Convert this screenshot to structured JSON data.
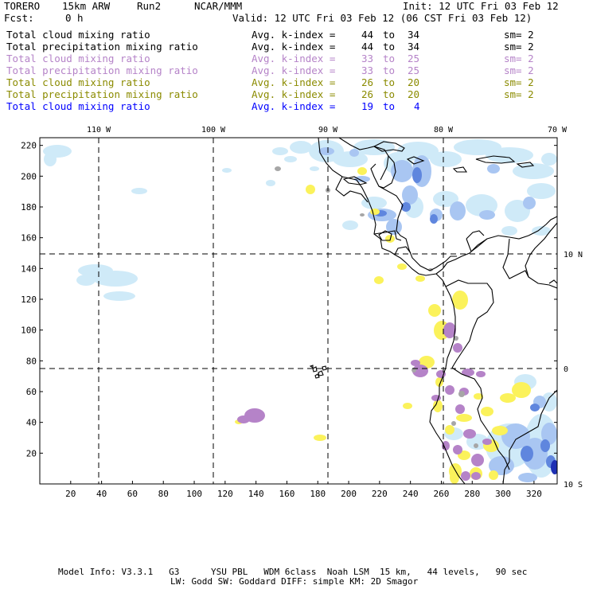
{
  "header": {
    "model": "TORERO",
    "resolution": "15km ARW",
    "run": "Run2",
    "org": "NCAR/MMM",
    "init": "Init: 12 UTC Fri 03 Feb 12",
    "fcst_label": "Fcst:",
    "fcst_value": "0 h",
    "valid": "Valid: 12 UTC Fri 03 Feb 12 (06 CST Fri 03 Feb 12)"
  },
  "legend": [
    {
      "field": "Total cloud mixing ratio",
      "avg_label": "Avg. k-index =",
      "k_from": "44",
      "to": "to",
      "k_to": "34",
      "sm": "sm= 2",
      "color": "#000000"
    },
    {
      "field": "Total precipitation mixing ratio",
      "avg_label": "Avg. k-index =",
      "k_from": "44",
      "to": "to",
      "k_to": "34",
      "sm": "sm= 2",
      "color": "#000000"
    },
    {
      "field": "Total cloud mixing ratio",
      "avg_label": "Avg. k-index =",
      "k_from": "33",
      "to": "to",
      "k_to": "25",
      "sm": "sm= 2",
      "color": "#b583c8"
    },
    {
      "field": "Total precipitation mixing ratio",
      "avg_label": "Avg. k-index =",
      "k_from": "33",
      "to": "to",
      "k_to": "25",
      "sm": "sm= 2",
      "color": "#b583c8"
    },
    {
      "field": "Total cloud mixing ratio",
      "avg_label": "Avg. k-index =",
      "k_from": "26",
      "to": "to",
      "k_to": "20",
      "sm": "sm= 2",
      "color": "#8b8b00"
    },
    {
      "field": "Total precipitation mixing ratio",
      "avg_label": "Avg. k-index =",
      "k_from": "26",
      "to": "to",
      "k_to": "20",
      "sm": "sm= 2",
      "color": "#8b8b00"
    },
    {
      "field": "Total cloud mixing ratio",
      "avg_label": "Avg. k-index =",
      "k_from": "19",
      "to": "to",
      "k_to": "4",
      "sm": "",
      "color": "#0000ff"
    }
  ],
  "map": {
    "top_lon_labels": [
      "110 W",
      "100 W",
      "90 W",
      "80 W",
      "70 W"
    ],
    "y_ticks": [
      "220",
      "200",
      "180",
      "160",
      "140",
      "120",
      "100",
      "80",
      "60",
      "40",
      "20"
    ],
    "x_ticks": [
      "20",
      "40",
      "60",
      "80",
      "100",
      "120",
      "140",
      "160",
      "180",
      "200",
      "220",
      "240",
      "260",
      "280",
      "300",
      "320"
    ],
    "right_lat_labels": [
      "10 N",
      "0",
      "10 S"
    ],
    "colors": {
      "light_blue": "#cfeaf8",
      "mid_blue": "#a9c6f2",
      "dark_blue": "#5f86de",
      "deep_blue": "#1d2fb3",
      "purple": "#b583c8",
      "yellow": "#fbf25b",
      "gray": "#a6a6a6",
      "coast": "#000000",
      "grid": "#000000"
    }
  },
  "footer": {
    "line1": "Model Info: V3.3.1   G3      YSU PBL   WDM 6class  Noah LSM  15 km,   44 levels,   90 sec",
    "line2": "LW: Godd SW: Goddard DIFF: simple KM: 2D Smagor"
  }
}
